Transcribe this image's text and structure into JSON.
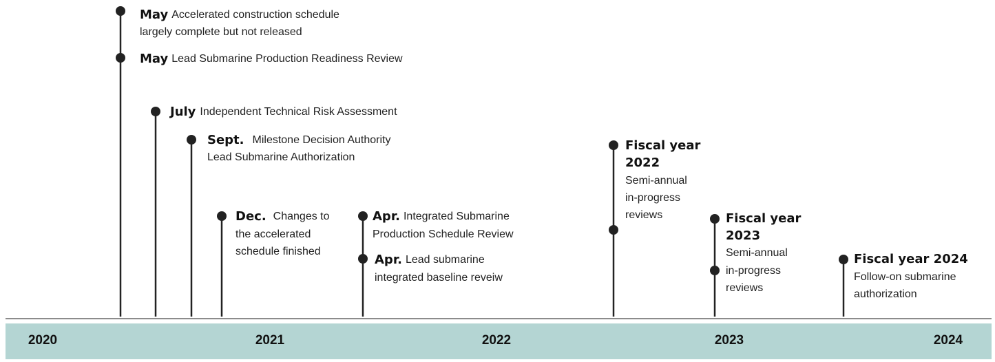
{
  "title_events": [
    {
      "heading": "May",
      "lines": [
        "Accelerated construction schedule",
        "largely complete but not released"
      ]
    },
    {
      "heading": "May",
      "lines": [
        "Lead Submarine Production Readiness Review"
      ]
    },
    {
      "heading": "July",
      "lines": [
        "Independent Technical Risk Assessment"
      ]
    },
    {
      "heading": "Sept.",
      "lines": [
        "Milestone Decision Authority",
        "Lead Submarine Authorization"
      ]
    },
    {
      "heading": "Dec.",
      "lines": [
        "Changes to",
        "the accelerated",
        "schedule finished"
      ]
    },
    {
      "heading": "Apr.",
      "lines": [
        "Integrated Submarine",
        "Production Schedule Review"
      ]
    },
    {
      "heading": "Apr.",
      "lines": [
        "Lead submarine",
        "integrated baseline reveiw"
      ]
    },
    {
      "heading": [
        "Fiscal year",
        "2022"
      ],
      "lines": [
        "Semi-annual",
        "in-progress",
        "reviews"
      ]
    },
    {
      "heading": [
        "Fiscal year",
        "2023"
      ],
      "lines": [
        "Semi-annual",
        "in-progress",
        "reviews"
      ]
    },
    {
      "heading": "Fiscal year 2024",
      "lines": [
        "Follow-on submarine",
        "authorization"
      ]
    }
  ],
  "years": [
    "2020",
    "2021",
    "2022",
    "2023",
    "2024"
  ]
}
